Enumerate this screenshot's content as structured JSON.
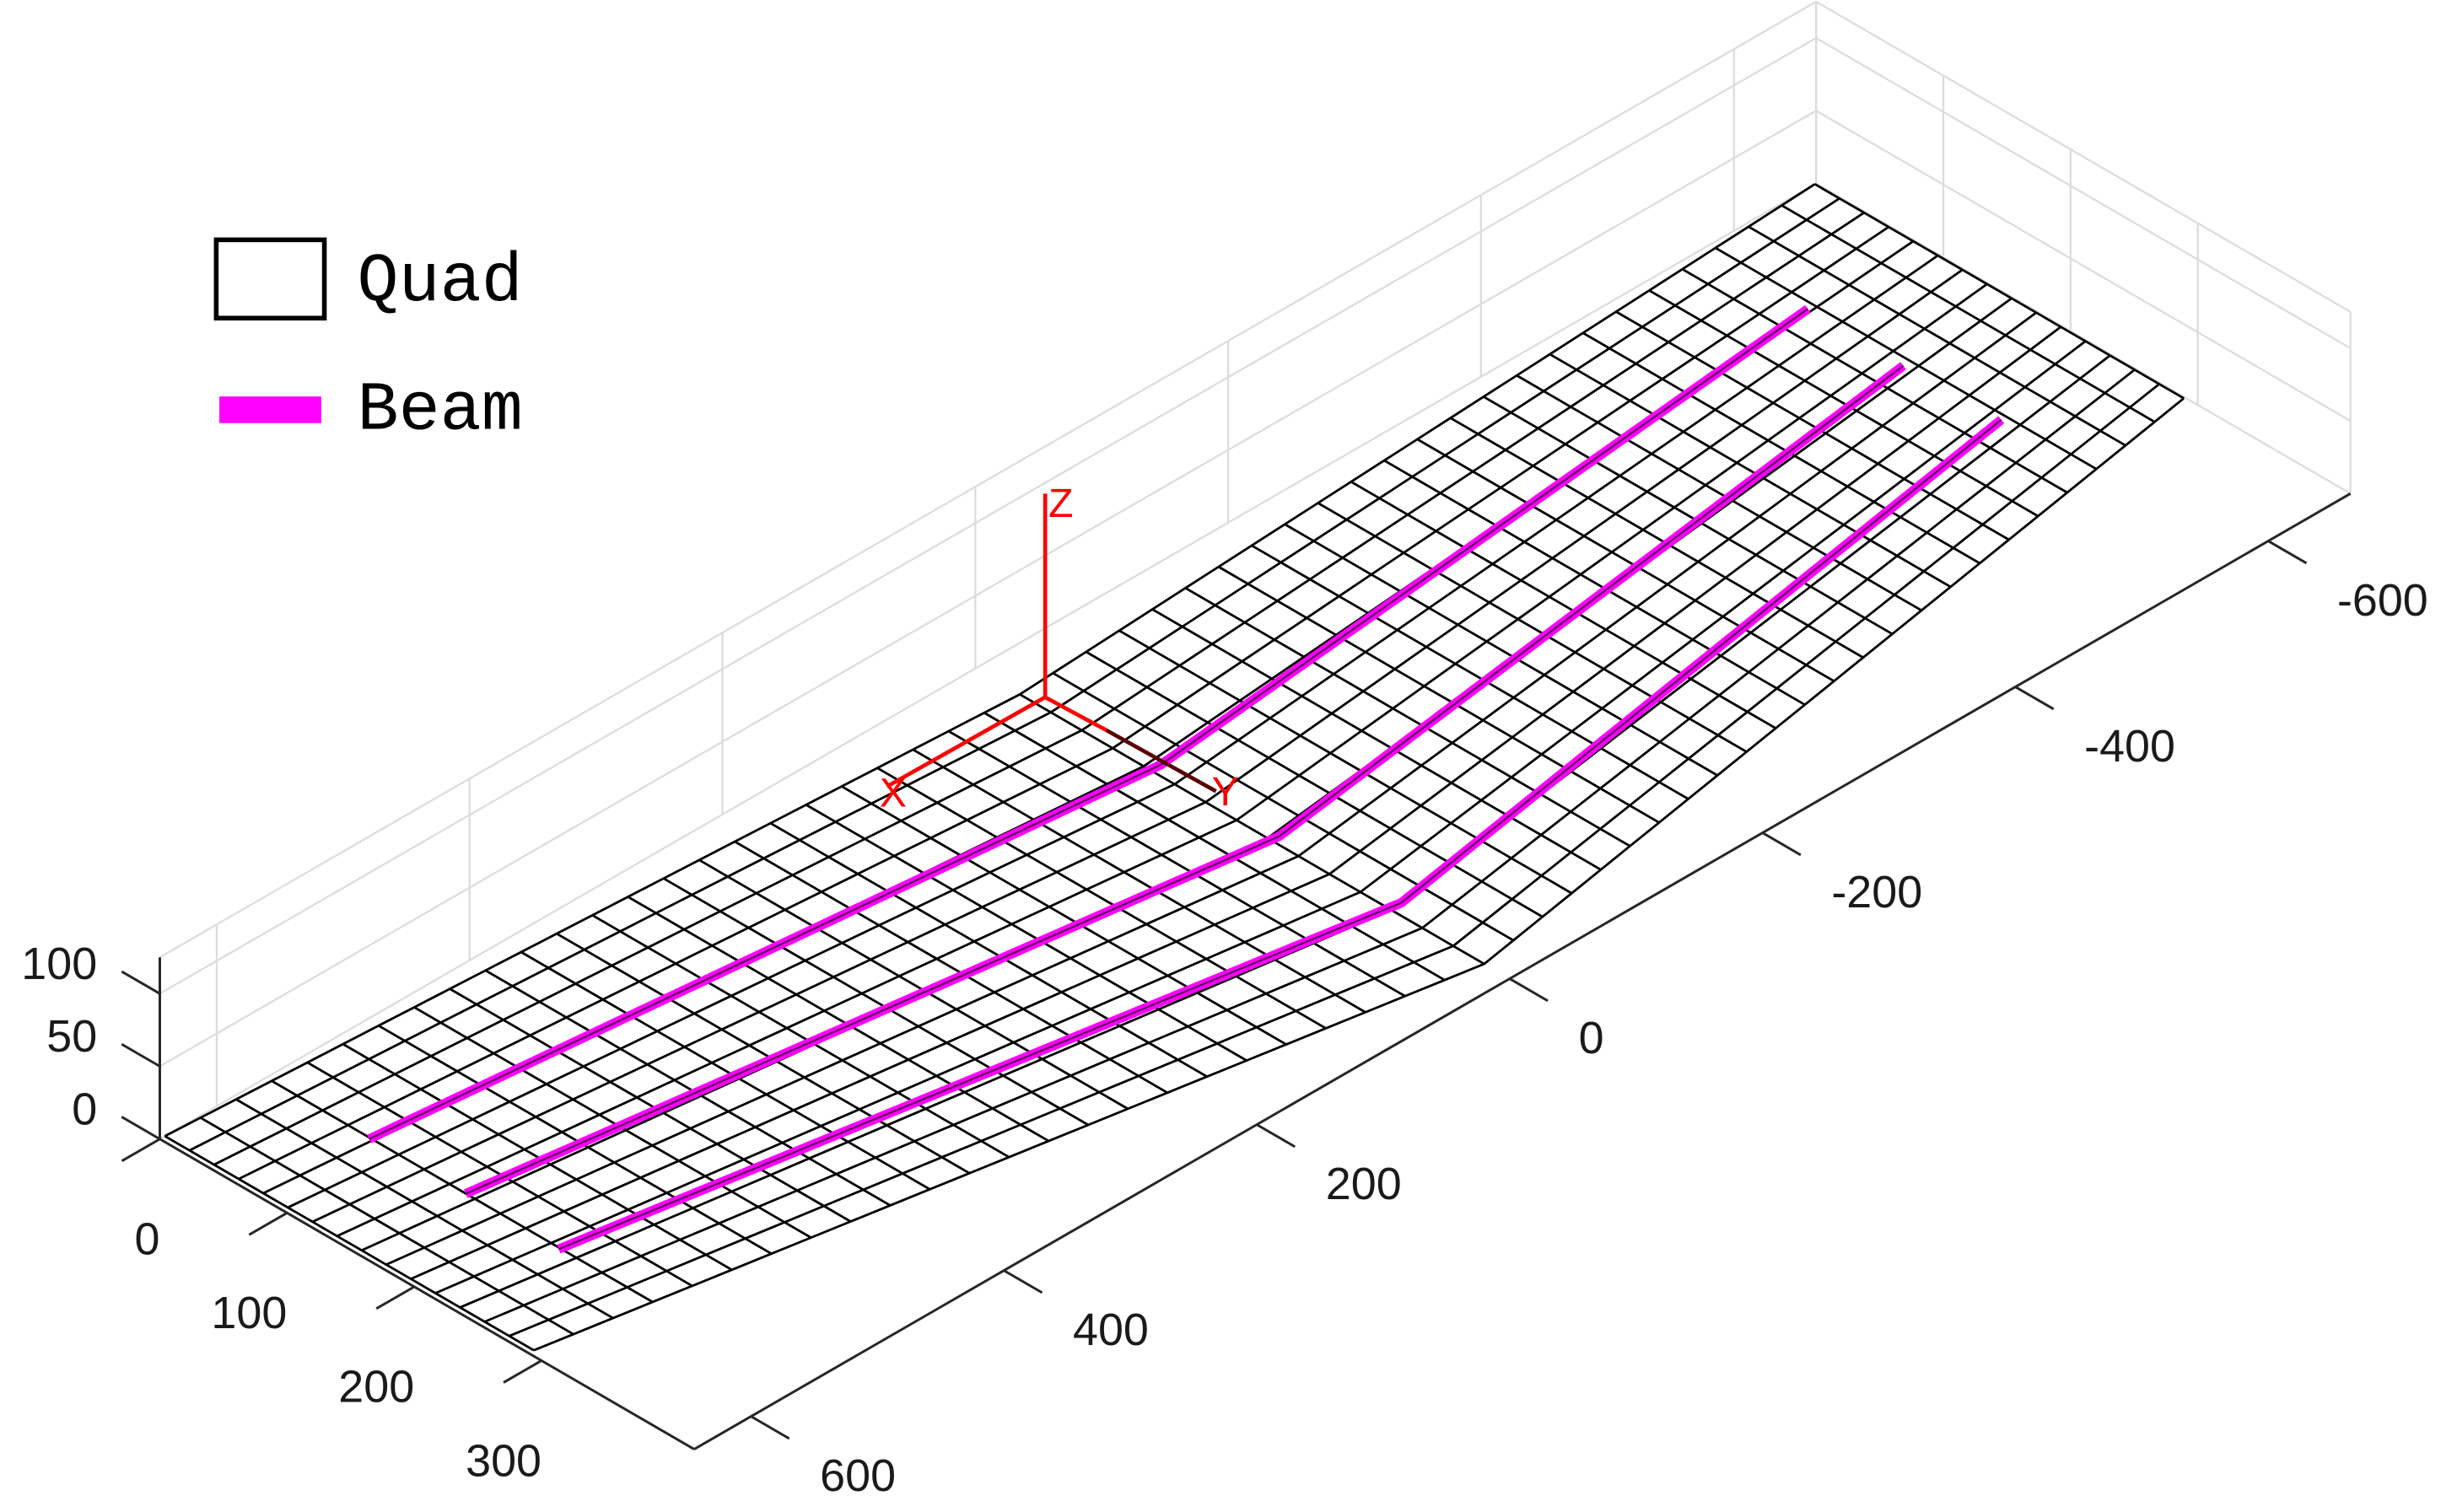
{
  "chart_data": {
    "type": "mesh3d",
    "series": [
      {
        "name": "Quad",
        "color": "#000000",
        "sections": {
          "y": [
            641,
            0,
            -664
          ],
          "x_back": [
            0,
            35,
            0
          ],
          "x_front": [
            290,
            400,
            290
          ],
          "z": [
            0,
            0,
            0
          ]
        },
        "divisions": [
          15,
          24
        ]
      },
      {
        "name": "Beam",
        "color": "#ff00ff",
        "lines": [
          [
            [
              82,
              562,
              0
            ],
            [
              138,
              -8,
              0
            ],
            [
              82,
              -576,
              0
            ]
          ],
          [
            [
              157,
              561,
              0
            ],
            [
              233,
              -6,
              0
            ],
            [
              158,
              -575,
              0
            ]
          ],
          [
            [
              231,
              562,
              0
            ],
            [
              326,
              -9,
              0
            ],
            [
              233,
              -577,
              0
            ]
          ]
        ]
      }
    ],
    "xlim": [
      0,
      420
    ],
    "ylim": [
      -665,
      645
    ],
    "zlim": [
      0,
      125
    ],
    "xticks": [
      0,
      100,
      200,
      300
    ],
    "yticks": [
      -600,
      -400,
      -200,
      0,
      200,
      400,
      600
    ],
    "zticks": [
      0,
      50,
      100
    ],
    "grid": true,
    "legend": "upper left",
    "triad": {
      "labels": [
        "X",
        "Y",
        "Z"
      ],
      "color": "#ff0000"
    }
  }
}
